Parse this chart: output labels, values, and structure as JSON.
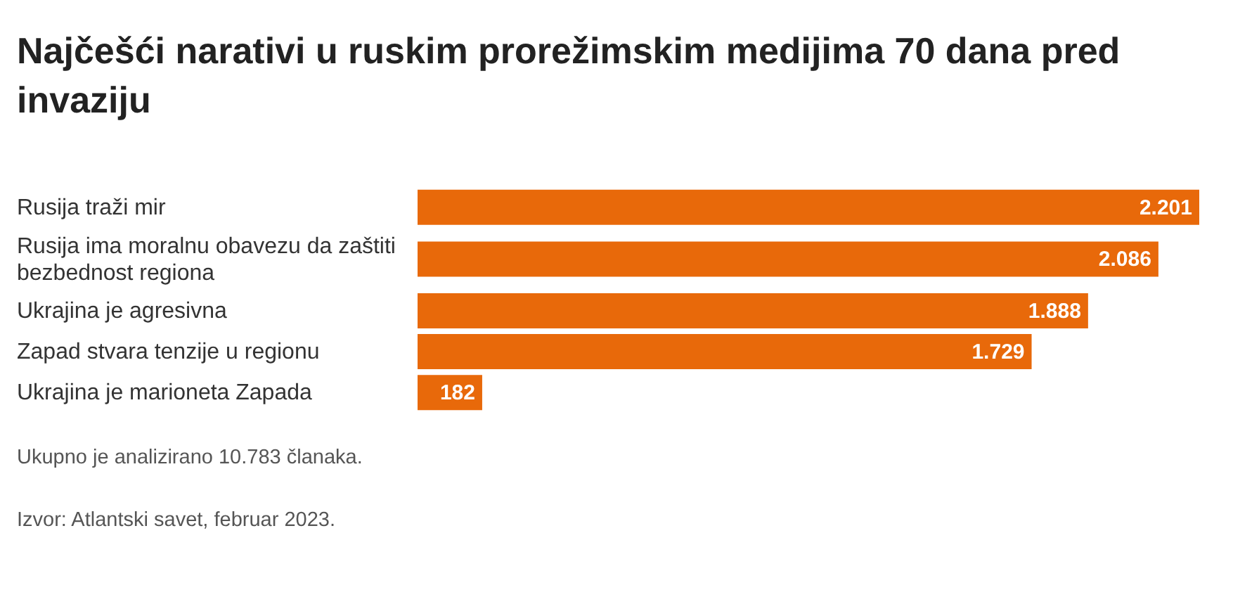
{
  "chart_data": {
    "type": "bar",
    "orientation": "horizontal",
    "title": "Najčešći narativi u ruskim prorežimskim medijima 70 dana pred invaziju",
    "categories": [
      "Rusija traži mir",
      "Rusija ima moralnu obavezu da zaštiti bezbednost regiona",
      "Ukrajina je agresivna",
      "Zapad stvara tenzije u regionu",
      "Ukrajina je marioneta Zapada"
    ],
    "values": [
      2201,
      2086,
      1888,
      1729,
      182
    ],
    "color": "#e8690a",
    "value_labels": [
      "2.201",
      "2.086",
      "1.888",
      "1.729",
      "182"
    ],
    "annotations": [
      "Ukupno je analizirano 10.783 članaka.",
      "Izvor: Atlantski savet, februar 2023."
    ]
  }
}
